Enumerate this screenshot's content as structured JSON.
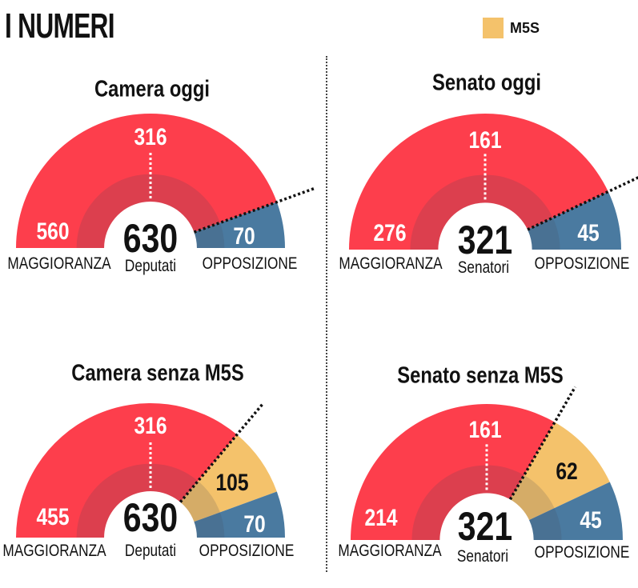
{
  "title": "I NUMERI",
  "legend": {
    "label": "M5S",
    "color": "#f4c26b"
  },
  "colors": {
    "maggioranza": "#fd3e4c",
    "m5s": "#f4c26b",
    "opposizione": "#4a7aa0"
  },
  "labels": {
    "maggioranza": "MAGGIORANZA",
    "opposizione": "OPPOSIZIONE",
    "deputati": "Deputati",
    "senatori": "Senatori"
  },
  "chart_data": [
    {
      "type": "pie",
      "title": "Camera oggi",
      "total": 630,
      "majority_threshold": 316,
      "unit": "Deputati",
      "segments": [
        {
          "name": "MAGGIORANZA",
          "value": 560
        },
        {
          "name": "OPPOSIZIONE",
          "value": 70
        }
      ]
    },
    {
      "type": "pie",
      "title": "Senato oggi",
      "total": 321,
      "majority_threshold": 161,
      "unit": "Senatori",
      "segments": [
        {
          "name": "MAGGIORANZA",
          "value": 276
        },
        {
          "name": "OPPOSIZIONE",
          "value": 45
        }
      ]
    },
    {
      "type": "pie",
      "title": "Camera senza M5S",
      "total": 630,
      "majority_threshold": 316,
      "unit": "Deputati",
      "segments": [
        {
          "name": "MAGGIORANZA",
          "value": 455
        },
        {
          "name": "M5S",
          "value": 105
        },
        {
          "name": "OPPOSIZIONE",
          "value": 70
        }
      ]
    },
    {
      "type": "pie",
      "title": "Senato senza M5S",
      "total": 321,
      "majority_threshold": 161,
      "unit": "Senatori",
      "segments": [
        {
          "name": "MAGGIORANZA",
          "value": 214
        },
        {
          "name": "M5S",
          "value": 62
        },
        {
          "name": "OPPOSIZIONE",
          "value": 45
        }
      ]
    }
  ]
}
